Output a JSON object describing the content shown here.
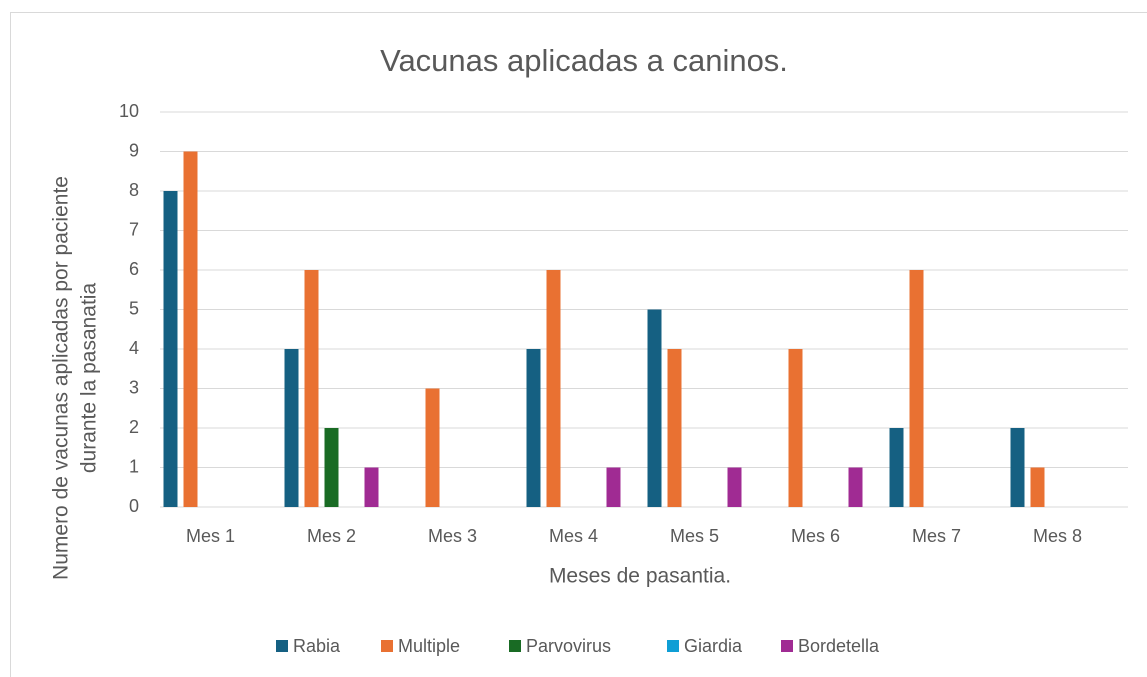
{
  "chart_data": {
    "type": "bar",
    "title": "Vacunas aplicadas a caninos.",
    "ylabel": [
      "Numero de vacunas aplicadas por paciente",
      "durante la pasanatia"
    ],
    "xlabel": "Meses de pasantia.",
    "categories": [
      "Mes 1",
      "Mes 2",
      "Mes 3",
      "Mes 4",
      "Mes 5",
      "Mes 6",
      "Mes 7",
      "Mes 8"
    ],
    "series": [
      {
        "name": "Rabia",
        "color": "#156082",
        "values": [
          8,
          4,
          0,
          4,
          5,
          0,
          2,
          2
        ]
      },
      {
        "name": "Multiple",
        "color": "#e97132",
        "values": [
          9,
          6,
          3,
          6,
          4,
          4,
          6,
          1
        ]
      },
      {
        "name": "Parvovirus",
        "color": "#196b24",
        "values": [
          0,
          2,
          0,
          0,
          0,
          0,
          0,
          0
        ]
      },
      {
        "name": "Giardia",
        "color": "#0f9ed5",
        "values": [
          0,
          0,
          0,
          0,
          0,
          0,
          0,
          0
        ]
      },
      {
        "name": "Bordetella",
        "color": "#a02b93",
        "values": [
          0,
          1,
          0,
          1,
          1,
          1,
          0,
          0
        ]
      }
    ],
    "ylim": [
      0,
      10
    ],
    "yticks": [
      0,
      1,
      2,
      3,
      4,
      5,
      6,
      7,
      8,
      9,
      10
    ],
    "grid": true,
    "legend": "bottom"
  }
}
